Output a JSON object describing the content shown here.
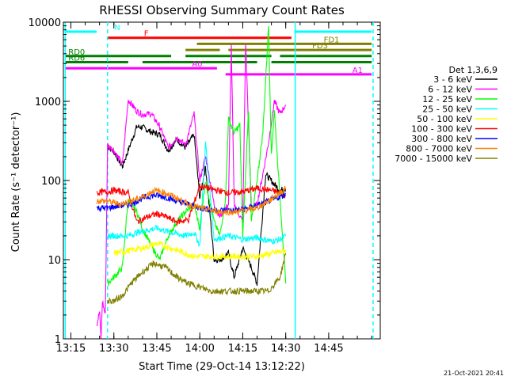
{
  "chart_data": {
    "type": "line",
    "title": "RHESSI Observing Summary Count Rates",
    "xlabel": "Start Time (29-Oct-14 13:12:22)",
    "ylabel": "Count Rate (s⁻¹ detector⁻¹)",
    "x_ticks": [
      "13:15",
      "13:30",
      "13:45",
      "14:00",
      "14:15",
      "14:30",
      "14:45"
    ],
    "x_tick_minutes": [
      15,
      30,
      45,
      60,
      75,
      90,
      105
    ],
    "x_range_minutes": [
      12.37,
      123.0
    ],
    "y_scale": "log",
    "ylim": [
      1,
      10000
    ],
    "y_ticks": [
      1,
      10,
      100,
      1000,
      10000
    ],
    "y_tick_labels": [
      "1",
      "10",
      "100",
      "1000",
      "10000"
    ],
    "legend_title": "Det 1,3,6,9",
    "legend_position": "right",
    "footer_date": "21-Oct-2021 20:41",
    "series": [
      {
        "name": "3 - 6 keV",
        "color": "#000000",
        "x": [
          27.8,
          30,
          33,
          35,
          38,
          40,
          43,
          46,
          49,
          52,
          55,
          58,
          60,
          62,
          65,
          67,
          70,
          72,
          75,
          78,
          80,
          83,
          86,
          88,
          90
        ],
        "y": [
          270,
          230,
          150,
          240,
          480,
          470,
          410,
          380,
          240,
          330,
          260,
          380,
          60,
          150,
          10,
          10,
          12,
          6,
          14,
          8,
          5,
          120,
          90,
          75,
          80
        ]
      },
      {
        "name": "6 - 12 keV",
        "color": "#ff00ff",
        "x": [
          24,
          25,
          25.5,
          26,
          27,
          27.8,
          30,
          33,
          35,
          38,
          40,
          43,
          46,
          49,
          52,
          55,
          58,
          60,
          62,
          65,
          67,
          70,
          71,
          72,
          75,
          76,
          78,
          80,
          82,
          84,
          86,
          88,
          90
        ],
        "y": [
          1.5,
          2.2,
          1,
          3,
          2,
          280,
          240,
          160,
          1050,
          750,
          680,
          700,
          480,
          260,
          350,
          280,
          700,
          100,
          200,
          50,
          35,
          50,
          5000,
          50,
          30,
          5500,
          45,
          50,
          120,
          300,
          1000,
          700,
          900
        ]
      },
      {
        "name": "12 - 25 keV",
        "color": "#00ff00",
        "x": [
          27.8,
          30,
          33,
          35,
          38,
          40,
          43,
          46,
          49,
          52,
          55,
          58,
          60,
          62,
          65,
          67,
          69,
          70,
          72,
          74,
          75,
          77,
          78,
          80,
          82,
          84,
          85,
          86,
          88,
          90
        ],
        "y": [
          5,
          6,
          8,
          60,
          40,
          25,
          15,
          10,
          20,
          30,
          40,
          50,
          25,
          100,
          30,
          20,
          60,
          600,
          400,
          500,
          20,
          800,
          30,
          100,
          400,
          9000,
          200,
          800,
          60,
          5
        ]
      },
      {
        "name": "25 - 50 keV",
        "color": "#00ffff",
        "x": [
          27.8,
          35,
          38,
          45,
          50,
          55,
          58,
          60,
          62,
          65,
          70,
          75,
          80,
          85,
          88,
          90
        ],
        "y": [
          20,
          20,
          22,
          25,
          22,
          20,
          22,
          15,
          300,
          18,
          20,
          18,
          19,
          17,
          18,
          20
        ]
      },
      {
        "name": "50 - 100 keV",
        "color": "#ffff00",
        "x": [
          30,
          35,
          40,
          45,
          50,
          55,
          58,
          60,
          65,
          70,
          75,
          80,
          85,
          90
        ],
        "y": [
          12,
          13,
          14,
          16,
          14,
          12,
          11,
          11,
          11,
          11,
          11,
          11,
          12,
          13
        ]
      },
      {
        "name": "100 - 300 keV",
        "color": "#ff0000",
        "x": [
          24,
          27.8,
          30,
          35,
          38,
          42,
          45,
          48,
          52,
          56,
          60,
          63,
          66,
          70,
          75,
          80,
          85,
          88,
          90
        ],
        "y": [
          70,
          72,
          75,
          70,
          30,
          35,
          38,
          35,
          30,
          32,
          85,
          80,
          75,
          70,
          72,
          80,
          75,
          70,
          65
        ]
      },
      {
        "name": "300 - 800 keV",
        "color": "#0000ff",
        "x": [
          24,
          27.8,
          32,
          36,
          40,
          44,
          48,
          52,
          56,
          60,
          64,
          68,
          72,
          76,
          80,
          84,
          88,
          90
        ],
        "y": [
          45,
          45,
          48,
          50,
          60,
          65,
          62,
          55,
          50,
          45,
          43,
          42,
          42,
          44,
          48,
          55,
          62,
          68
        ]
      },
      {
        "name": "800 - 7000 keV",
        "color": "#ff8000",
        "x": [
          24,
          27.8,
          32,
          36,
          40,
          44,
          48,
          52,
          56,
          60,
          64,
          68,
          72,
          76,
          80,
          84,
          88,
          90
        ],
        "y": [
          55,
          55,
          50,
          55,
          62,
          75,
          70,
          60,
          50,
          45,
          42,
          40,
          40,
          42,
          45,
          55,
          70,
          80
        ]
      },
      {
        "name": "7000 - 15000 keV",
        "color": "#808000",
        "x": [
          27.8,
          30,
          33,
          36,
          40,
          44,
          48,
          52,
          56,
          60,
          64,
          68,
          72,
          76,
          80,
          84,
          88,
          90
        ],
        "y": [
          3,
          3,
          3.5,
          5,
          7,
          9,
          8,
          6,
          5,
          4.5,
          4,
          4,
          4,
          4,
          4,
          4,
          6,
          12
        ]
      }
    ],
    "flag_bars": [
      {
        "label": "N",
        "color": "#00ffff",
        "segments": [
          [
            13,
            24
          ],
          [
            93,
            120
          ]
        ]
      },
      {
        "label": "F",
        "color": "#ff0000",
        "segments": [
          [
            27.8,
            92
          ]
        ]
      },
      {
        "label": "FD1",
        "color": "#808000",
        "segments": [
          [
            59,
            120
          ]
        ]
      },
      {
        "label": "FD3",
        "color": "#808000",
        "segments": [
          [
            55,
            67
          ],
          [
            70,
            120
          ]
        ]
      },
      {
        "label": "RD0",
        "color": "#008000",
        "segments": [
          [
            13,
            50
          ],
          [
            55,
            85
          ],
          [
            88,
            120
          ]
        ]
      },
      {
        "label": "RD6",
        "color": "#008000",
        "segments": [
          [
            13,
            35
          ],
          [
            40,
            80
          ],
          [
            85,
            120
          ]
        ]
      },
      {
        "label": "A0",
        "color": "#ff00ff",
        "segments": [
          [
            13,
            66
          ]
        ]
      },
      {
        "label": "A1",
        "color": "#ff00ff",
        "segments": [
          [
            69,
            120
          ]
        ]
      }
    ],
    "vertical_markers": [
      {
        "minute": 13.0,
        "color": "#00ffff",
        "style": "solid"
      },
      {
        "minute": 27.8,
        "color": "#00ffff",
        "style": "dashed"
      },
      {
        "minute": 93.3,
        "color": "#00ffff",
        "style": "solid"
      },
      {
        "minute": 120.5,
        "color": "#00ffff",
        "style": "dashed"
      }
    ]
  }
}
